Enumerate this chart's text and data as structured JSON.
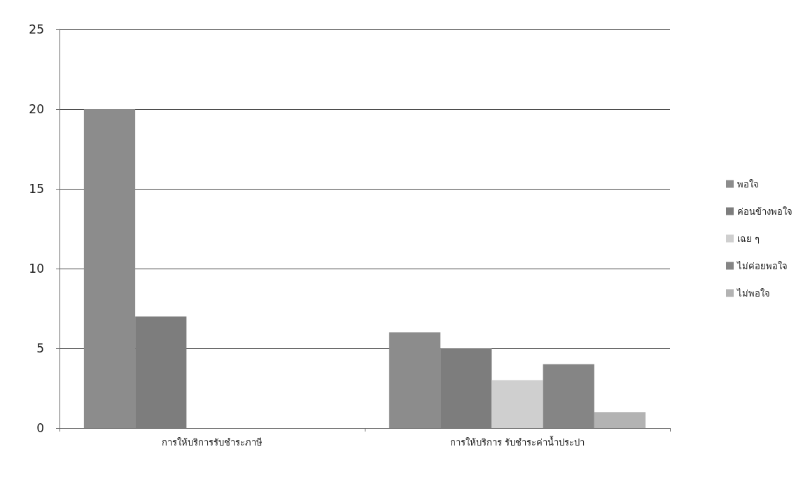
{
  "chart_data": {
    "type": "bar",
    "categories": [
      "การให้บริการรับชำระภาษี",
      "การให้บริการ รับชำระค่าน้ำประปา"
    ],
    "series": [
      {
        "name": "พอใจ",
        "color": "#8c8c8c",
        "values": [
          20,
          6
        ]
      },
      {
        "name": "ค่อนข้างพอใจ",
        "color": "#7d7d7d",
        "values": [
          7,
          5
        ]
      },
      {
        "name": "เฉย ๆ",
        "color": "#cfcfcf",
        "values": [
          0,
          3
        ]
      },
      {
        "name": "ไม่ค่อยพอใจ",
        "color": "#858585",
        "values": [
          0,
          4
        ]
      },
      {
        "name": "ไม่พอใจ",
        "color": "#b3b3b3",
        "values": [
          0,
          1
        ]
      }
    ],
    "ylim": [
      0,
      25
    ],
    "yticks": [
      0,
      5,
      10,
      15,
      20,
      25
    ],
    "grid": "y",
    "legend": "right"
  }
}
